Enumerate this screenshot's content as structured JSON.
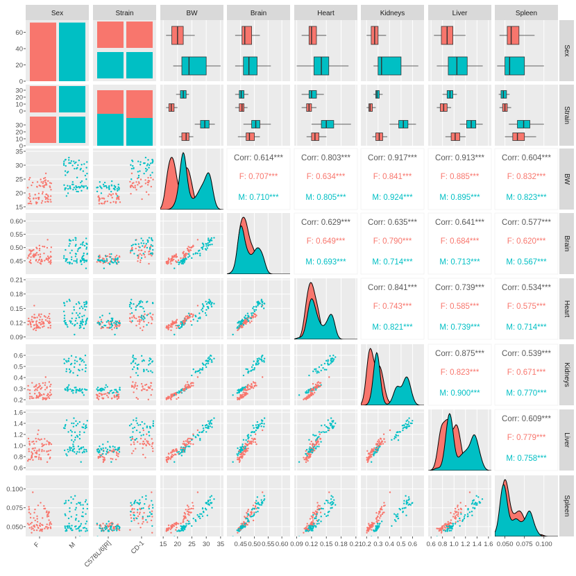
{
  "chart_data": {
    "type": "pairs",
    "variables": [
      "Sex",
      "Strain",
      "BW",
      "Brain",
      "Heart",
      "Kidneys",
      "Liver",
      "Spleen"
    ],
    "groups": {
      "Sex": [
        "F",
        "M"
      ],
      "Strain": [
        "C57BL/6[R]",
        "CD-1"
      ]
    },
    "colors": {
      "F": "#F8766D",
      "M": "#00BFC4"
    },
    "axes": {
      "BW": {
        "range": [
          14,
          36
        ],
        "ticks": [
          15,
          20,
          25,
          30,
          35
        ]
      },
      "Brain": {
        "range": [
          0.4,
          0.63
        ],
        "ticks": [
          0.45,
          0.5,
          0.55,
          0.6
        ]
      },
      "Heart": {
        "range": [
          0.085,
          0.213
        ],
        "ticks": [
          0.09,
          0.12,
          0.15,
          0.18,
          0.21
        ]
      },
      "Kidneys": {
        "range": [
          0.15,
          0.7
        ],
        "ticks": [
          0.2,
          0.3,
          0.4,
          0.5,
          0.6
        ]
      },
      "Liver": {
        "range": [
          0.55,
          1.65
        ],
        "ticks": [
          0.6,
          0.8,
          1.0,
          1.2,
          1.4,
          1.6
        ]
      },
      "Spleen": {
        "range": [
          0.037,
          0.118
        ],
        "ticks": [
          0.05,
          0.075,
          0.1
        ]
      }
    },
    "axis_tick_labels": {
      "BW": [
        "15",
        "20",
        "25",
        "30",
        "35"
      ],
      "Brain": [
        "0.45",
        "0.50",
        "0.55",
        "0.60"
      ],
      "Heart": [
        "0.09",
        "0.12",
        "0.15",
        "0.18",
        "0.21"
      ],
      "Kidneys": [
        "0.2",
        "0.3",
        "0.4",
        "0.5",
        "0.6"
      ],
      "Liver": [
        "0.6",
        "0.8",
        "1.0",
        "1.2",
        "1.4",
        "1.6"
      ],
      "Spleen": [
        "0.050",
        "0.075",
        "0.100"
      ]
    },
    "counts": {
      "Sex_range": [
        0,
        75
      ],
      "Sex_ticks": [
        0,
        20,
        40,
        60
      ],
      "Sex_by_Sex": {
        "F": 72,
        "M": 72
      },
      "Strain_range": [
        0,
        36
      ],
      "Strain_ticks": [
        0,
        10,
        20,
        30
      ],
      "Strain_by_Sex": {
        "C57BL/6[R]": {
          "F": 36,
          "M": 36
        },
        "CD-1": {
          "F": 36,
          "M": 36
        }
      }
    },
    "boxplots_by_sex": {
      "BW": {
        "F": [
          16,
          18,
          20,
          22,
          26
        ],
        "M": [
          18.5,
          21.5,
          24,
          30,
          35
        ]
      },
      "Brain": {
        "F": [
          0.43,
          0.455,
          0.465,
          0.49,
          0.52
        ],
        "M": [
          0.43,
          0.46,
          0.48,
          0.51,
          0.56
        ]
      },
      "Heart": {
        "F": [
          0.1,
          0.115,
          0.12,
          0.13,
          0.15
        ],
        "M": [
          0.09,
          0.125,
          0.14,
          0.155,
          0.195
        ]
      },
      "Kidneys": {
        "F": [
          0.2,
          0.24,
          0.27,
          0.3,
          0.37
        ],
        "M": [
          0.26,
          0.3,
          0.33,
          0.5,
          0.65
        ]
      },
      "Liver": {
        "F": [
          0.65,
          0.78,
          0.88,
          0.98,
          1.2
        ],
        "M": [
          0.7,
          0.9,
          1.05,
          1.23,
          1.5
        ]
      },
      "Spleen": {
        "F": [
          0.043,
          0.053,
          0.058,
          0.068,
          0.088
        ],
        "M": [
          0.04,
          0.05,
          0.056,
          0.075,
          0.1
        ]
      }
    },
    "boxplots_by_strain_sex": {
      "BW": {
        "C57BL/6[R]": {
          "F": [
            16,
            17,
            17.8,
            18.8,
            20
          ],
          "M": [
            19.5,
            21,
            22,
            23,
            24
          ]
        },
        "CD-1": {
          "F": [
            20.5,
            21.5,
            23,
            24,
            25.5
          ],
          "M": [
            26,
            28,
            29.5,
            31,
            33
          ]
        }
      },
      "Brain": {
        "C57BL/6[R]": {
          "F": [
            0.43,
            0.445,
            0.455,
            0.462,
            0.475
          ],
          "M": [
            0.43,
            0.445,
            0.452,
            0.462,
            0.478
          ]
        },
        "CD-1": {
          "F": [
            0.44,
            0.47,
            0.482,
            0.5,
            0.52
          ],
          "M": [
            0.46,
            0.49,
            0.505,
            0.52,
            0.56
          ]
        }
      },
      "Heart": {
        "C57BL/6[R]": {
          "F": [
            0.1,
            0.11,
            0.115,
            0.12,
            0.13
          ],
          "M": [
            0.1,
            0.115,
            0.12,
            0.13,
            0.145
          ]
        },
        "CD-1": {
          "F": [
            0.11,
            0.12,
            0.127,
            0.135,
            0.15
          ],
          "M": [
            0.12,
            0.14,
            0.15,
            0.165,
            0.2
          ]
        }
      },
      "Kidneys": {
        "C57BL/6[R]": {
          "F": [
            0.2,
            0.22,
            0.23,
            0.25,
            0.28
          ],
          "M": [
            0.26,
            0.28,
            0.29,
            0.31,
            0.34
          ]
        },
        "CD-1": {
          "F": [
            0.25,
            0.28,
            0.31,
            0.34,
            0.38
          ],
          "M": [
            0.4,
            0.48,
            0.52,
            0.56,
            0.63
          ]
        }
      },
      "Liver": {
        "C57BL/6[R]": {
          "F": [
            0.7,
            0.76,
            0.82,
            0.88,
            0.95
          ],
          "M": [
            0.8,
            0.88,
            0.93,
            0.98,
            1.05
          ]
        },
        "CD-1": {
          "F": [
            0.85,
            0.95,
            1.02,
            1.1,
            1.2
          ],
          "M": [
            1.1,
            1.22,
            1.3,
            1.38,
            1.5
          ]
        }
      },
      "Spleen": {
        "C57BL/6[R]": {
          "F": [
            0.043,
            0.047,
            0.05,
            0.053,
            0.058
          ],
          "M": [
            0.042,
            0.045,
            0.048,
            0.052,
            0.056
          ]
        },
        "CD-1": {
          "F": [
            0.05,
            0.06,
            0.066,
            0.075,
            0.09
          ],
          "M": [
            0.055,
            0.066,
            0.074,
            0.082,
            0.1
          ]
        }
      }
    },
    "correlations": [
      {
        "row": "BW",
        "col": "Brain",
        "Corr": "Corr: 0.614***",
        "F": "F: 0.707***",
        "M": "M: 0.710***"
      },
      {
        "row": "BW",
        "col": "Heart",
        "Corr": "Corr: 0.803***",
        "F": "F: 0.634***",
        "M": "M: 0.805***"
      },
      {
        "row": "BW",
        "col": "Kidneys",
        "Corr": "Corr: 0.917***",
        "F": "F: 0.841***",
        "M": "M: 0.924***"
      },
      {
        "row": "BW",
        "col": "Liver",
        "Corr": "Corr: 0.913***",
        "F": "F: 0.885***",
        "M": "M: 0.895***"
      },
      {
        "row": "BW",
        "col": "Spleen",
        "Corr": "Corr: 0.604***",
        "F": "F: 0.832***",
        "M": "M: 0.823***"
      },
      {
        "row": "Brain",
        "col": "Heart",
        "Corr": "Corr: 0.629***",
        "F": "F: 0.649***",
        "M": "M: 0.693***"
      },
      {
        "row": "Brain",
        "col": "Kidneys",
        "Corr": "Corr: 0.635***",
        "F": "F: 0.790***",
        "M": "M: 0.714***"
      },
      {
        "row": "Brain",
        "col": "Liver",
        "Corr": "Corr: 0.641***",
        "F": "F: 0.684***",
        "M": "M: 0.713***"
      },
      {
        "row": "Brain",
        "col": "Spleen",
        "Corr": "Corr: 0.577***",
        "F": "F: 0.620***",
        "M": "M: 0.567***"
      },
      {
        "row": "Heart",
        "col": "Kidneys",
        "Corr": "Corr: 0.841***",
        "F": "F: 0.743***",
        "M": "M: 0.821***"
      },
      {
        "row": "Heart",
        "col": "Liver",
        "Corr": "Corr: 0.739***",
        "F": "F: 0.585***",
        "M": "M: 0.739***"
      },
      {
        "row": "Heart",
        "col": "Spleen",
        "Corr": "Corr: 0.534***",
        "F": "F: 0.575***",
        "M": "M: 0.714***"
      },
      {
        "row": "Kidneys",
        "col": "Liver",
        "Corr": "Corr: 0.875***",
        "F": "F: 0.823***",
        "M": "M: 0.900***"
      },
      {
        "row": "Kidneys",
        "col": "Spleen",
        "Corr": "Corr: 0.539***",
        "F": "F: 0.671***",
        "M": "M: 0.770***"
      },
      {
        "row": "Liver",
        "col": "Spleen",
        "Corr": "Corr: 0.609***",
        "F": "F: 0.779***",
        "M": "M: 0.758***"
      }
    ],
    "density_peaks": {
      "BW": {
        "F": [
          17.5
        ],
        "M": [
          22,
          30
        ]
      },
      "Brain": {
        "F": [
          0.465
        ],
        "M": [
          0.48
        ]
      },
      "Heart": {
        "F": [
          0.115
        ],
        "M": [
          0.14
        ]
      },
      "Kidneys": {
        "F": [
          0.25
        ],
        "M": [
          0.3,
          0.53
        ]
      },
      "Liver": {
        "F": [
          0.8
        ],
        "M": [
          0.98,
          1.28
        ]
      },
      "Spleen": {
        "F": [
          0.052
        ],
        "M": [
          0.05,
          0.08
        ]
      }
    },
    "grid": true,
    "legend": "none"
  }
}
